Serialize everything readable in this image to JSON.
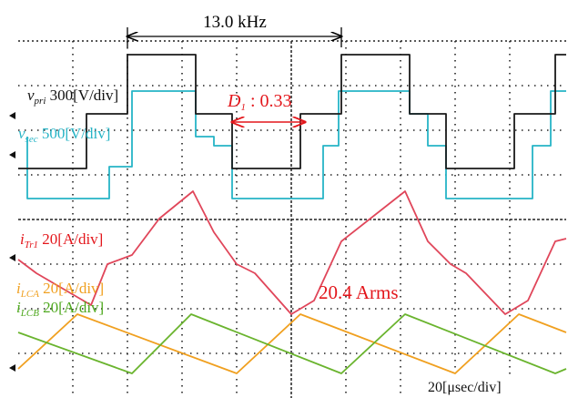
{
  "header": {
    "frequency": "13.0 kHz",
    "duty": {
      "symbol": "D",
      "subscript": "1",
      "value": " : 0.33"
    }
  },
  "channels": [
    {
      "symbol": "v",
      "subscript": "pri",
      "scale": " 300[V/div]"
    },
    {
      "symbol": "v",
      "subscript": "sec",
      "scale": " 500[V/div]"
    },
    {
      "symbol": "i",
      "subscript": "Tr1",
      "scale": " 20[A/div]"
    },
    {
      "symbol": "i",
      "subscript": "LCA",
      "scale": " 20[A/div]"
    },
    {
      "symbol": "i",
      "subscript": "LCB",
      "scale": " 20[A/div]"
    }
  ],
  "annotations": {
    "rms": "20.4 Arms",
    "timebase": "20[μsec/div]"
  }
}
